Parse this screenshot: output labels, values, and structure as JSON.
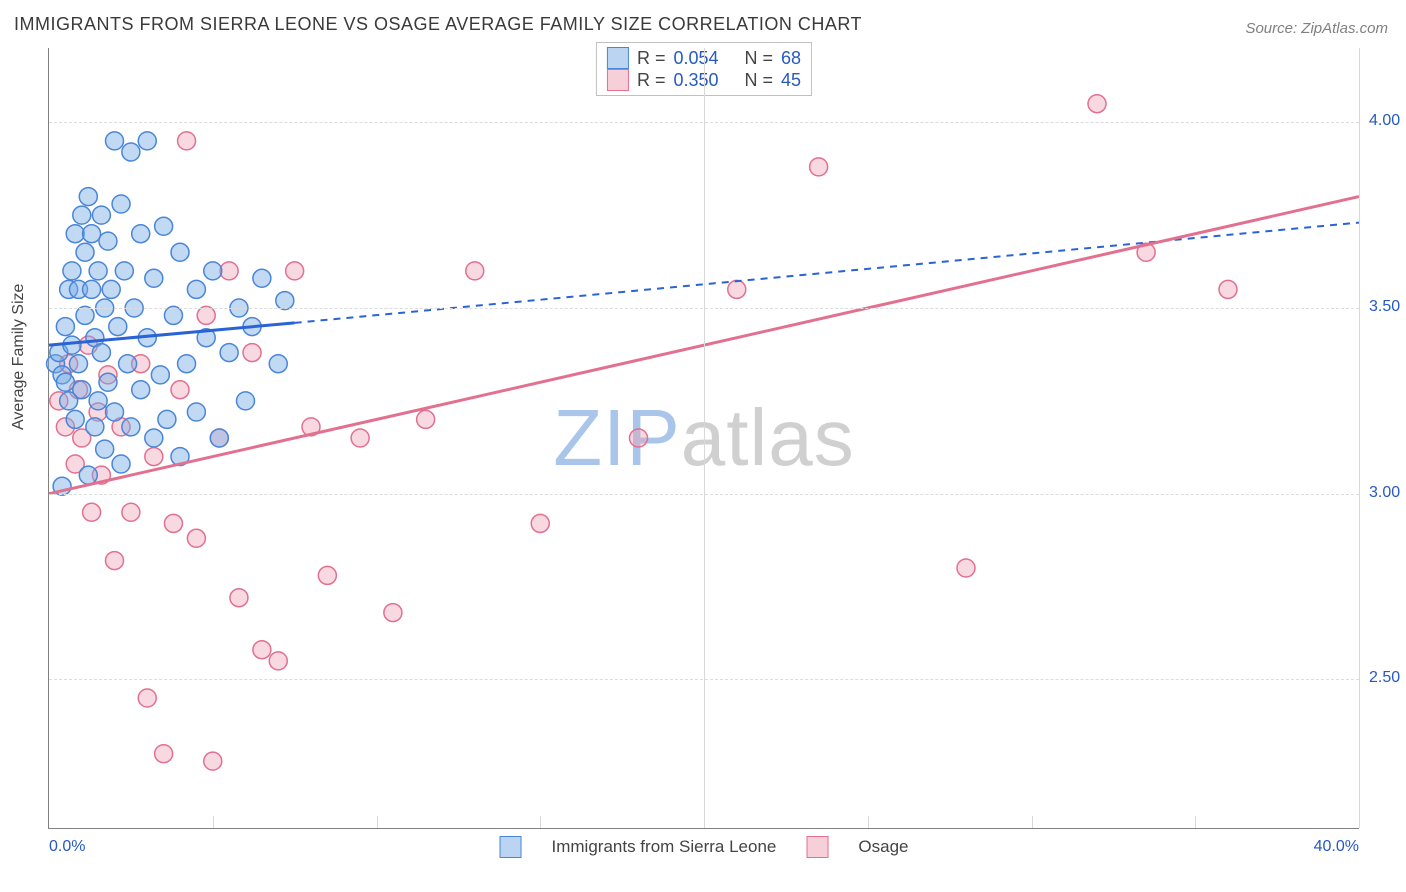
{
  "title": "IMMIGRANTS FROM SIERRA LEONE VS OSAGE AVERAGE FAMILY SIZE CORRELATION CHART",
  "source": "Source: ZipAtlas.com",
  "ylabel": "Average Family Size",
  "watermark_a": "ZIP",
  "watermark_b": "atlas",
  "chart": {
    "type": "scatter-with-regression",
    "xlim": [
      0,
      40
    ],
    "ylim": [
      2.1,
      4.2
    ],
    "xticks_minor": [
      0,
      5,
      10,
      15,
      20,
      25,
      30,
      35,
      40
    ],
    "xtick_labels": {
      "left": "0.0%",
      "right": "40.0%"
    },
    "yticks": [
      2.5,
      3.0,
      3.5,
      4.0
    ],
    "ytick_labels": [
      "2.50",
      "3.00",
      "3.50",
      "4.00"
    ],
    "grid_color": "#dcdcdc",
    "background_color": "#ffffff",
    "marker_radius": 9,
    "marker_stroke_width": 1.5,
    "series": [
      {
        "key": "sierra_leone",
        "label": "Immigrants from Sierra Leone",
        "color_fill": "rgba(120,170,230,0.45)",
        "color_stroke": "#4a86d8",
        "R": "0.054",
        "N": "68",
        "trend": {
          "x1": 0,
          "y1": 3.4,
          "x2": 7.5,
          "y2": 3.46,
          "x2_dash": 40,
          "y2_dash": 3.73,
          "line_color": "#2a63d6",
          "line_width": 3,
          "dash_color": "#2a63d6"
        },
        "points": [
          [
            0.2,
            3.35
          ],
          [
            0.3,
            3.38
          ],
          [
            0.4,
            3.32
          ],
          [
            0.5,
            3.45
          ],
          [
            0.5,
            3.3
          ],
          [
            0.6,
            3.55
          ],
          [
            0.6,
            3.25
          ],
          [
            0.7,
            3.6
          ],
          [
            0.7,
            3.4
          ],
          [
            0.8,
            3.7
          ],
          [
            0.8,
            3.2
          ],
          [
            0.9,
            3.55
          ],
          [
            0.9,
            3.35
          ],
          [
            1.0,
            3.75
          ],
          [
            1.0,
            3.28
          ],
          [
            1.1,
            3.65
          ],
          [
            1.1,
            3.48
          ],
          [
            1.2,
            3.8
          ],
          [
            1.2,
            3.05
          ],
          [
            1.3,
            3.55
          ],
          [
            1.3,
            3.7
          ],
          [
            1.4,
            3.42
          ],
          [
            1.4,
            3.18
          ],
          [
            1.5,
            3.6
          ],
          [
            1.5,
            3.25
          ],
          [
            1.6,
            3.75
          ],
          [
            1.6,
            3.38
          ],
          [
            1.7,
            3.5
          ],
          [
            1.7,
            3.12
          ],
          [
            1.8,
            3.68
          ],
          [
            1.8,
            3.3
          ],
          [
            1.9,
            3.55
          ],
          [
            2.0,
            3.95
          ],
          [
            2.0,
            3.22
          ],
          [
            2.1,
            3.45
          ],
          [
            2.2,
            3.78
          ],
          [
            2.2,
            3.08
          ],
          [
            2.3,
            3.6
          ],
          [
            2.4,
            3.35
          ],
          [
            2.5,
            3.92
          ],
          [
            2.5,
            3.18
          ],
          [
            2.6,
            3.5
          ],
          [
            2.8,
            3.7
          ],
          [
            2.8,
            3.28
          ],
          [
            3.0,
            3.42
          ],
          [
            3.0,
            3.95
          ],
          [
            3.2,
            3.15
          ],
          [
            3.2,
            3.58
          ],
          [
            3.4,
            3.32
          ],
          [
            3.5,
            3.72
          ],
          [
            3.6,
            3.2
          ],
          [
            3.8,
            3.48
          ],
          [
            4.0,
            3.65
          ],
          [
            4.0,
            3.1
          ],
          [
            4.2,
            3.35
          ],
          [
            4.5,
            3.55
          ],
          [
            4.5,
            3.22
          ],
          [
            4.8,
            3.42
          ],
          [
            5.0,
            3.6
          ],
          [
            5.2,
            3.15
          ],
          [
            5.5,
            3.38
          ],
          [
            5.8,
            3.5
          ],
          [
            6.0,
            3.25
          ],
          [
            6.2,
            3.45
          ],
          [
            6.5,
            3.58
          ],
          [
            7.0,
            3.35
          ],
          [
            7.2,
            3.52
          ],
          [
            0.4,
            3.02
          ]
        ]
      },
      {
        "key": "osage",
        "label": "Osage",
        "color_fill": "rgba(240,160,180,0.40)",
        "color_stroke": "#e2708f",
        "R": "0.350",
        "N": "45",
        "trend": {
          "x1": 0,
          "y1": 3.0,
          "x2": 40,
          "y2": 3.8,
          "line_color": "#e2708f",
          "line_width": 3
        },
        "points": [
          [
            0.3,
            3.25
          ],
          [
            0.5,
            3.18
          ],
          [
            0.6,
            3.35
          ],
          [
            0.8,
            3.08
          ],
          [
            0.9,
            3.28
          ],
          [
            1.0,
            3.15
          ],
          [
            1.2,
            3.4
          ],
          [
            1.3,
            2.95
          ],
          [
            1.5,
            3.22
          ],
          [
            1.6,
            3.05
          ],
          [
            1.8,
            3.32
          ],
          [
            2.0,
            2.82
          ],
          [
            2.2,
            3.18
          ],
          [
            2.5,
            2.95
          ],
          [
            2.8,
            3.35
          ],
          [
            3.0,
            2.45
          ],
          [
            3.2,
            3.1
          ],
          [
            3.5,
            2.3
          ],
          [
            3.8,
            2.92
          ],
          [
            4.0,
            3.28
          ],
          [
            4.2,
            3.95
          ],
          [
            4.5,
            2.88
          ],
          [
            4.8,
            3.48
          ],
          [
            5.0,
            2.28
          ],
          [
            5.2,
            3.15
          ],
          [
            5.5,
            3.6
          ],
          [
            5.8,
            2.72
          ],
          [
            6.2,
            3.38
          ],
          [
            6.5,
            2.58
          ],
          [
            7.0,
            2.55
          ],
          [
            7.5,
            3.6
          ],
          [
            8.0,
            3.18
          ],
          [
            8.5,
            2.78
          ],
          [
            9.5,
            3.15
          ],
          [
            10.5,
            2.68
          ],
          [
            11.5,
            3.2
          ],
          [
            13.0,
            3.6
          ],
          [
            15.0,
            2.92
          ],
          [
            18.0,
            3.15
          ],
          [
            21.0,
            3.55
          ],
          [
            23.5,
            3.88
          ],
          [
            28.0,
            2.8
          ],
          [
            32.0,
            4.05
          ],
          [
            33.5,
            3.65
          ],
          [
            36.0,
            3.55
          ]
        ]
      }
    ]
  },
  "legend_top": {
    "rows": [
      {
        "swatch": "blue",
        "R_label": "R =",
        "R": "0.054",
        "N_label": "N =",
        "N": "68"
      },
      {
        "swatch": "pink",
        "R_label": "R =",
        "R": "0.350",
        "N_label": "N =",
        "N": "45"
      }
    ]
  },
  "legend_bottom": [
    {
      "swatch": "blue",
      "label": "Immigrants from Sierra Leone"
    },
    {
      "swatch": "pink",
      "label": "Osage"
    }
  ]
}
